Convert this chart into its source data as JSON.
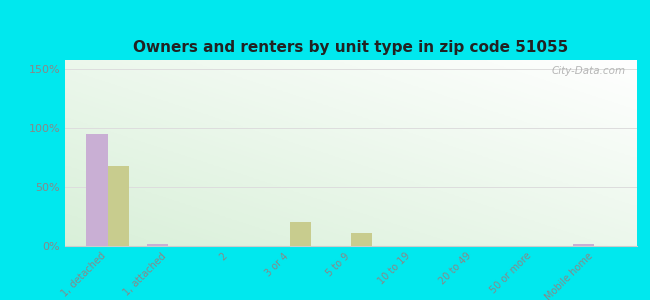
{
  "title": "Owners and renters by unit type in zip code 51055",
  "categories": [
    "1, detached",
    "1, attached",
    "2",
    "3 or 4",
    "5 to 9",
    "10 to 19",
    "20 to 49",
    "50 or more",
    "Mobile home"
  ],
  "owner_values": [
    95,
    2,
    0,
    0,
    0,
    0,
    0,
    0,
    2
  ],
  "renter_values": [
    68,
    0,
    0,
    20,
    11,
    0,
    0,
    0,
    0
  ],
  "owner_color": "#c9afd4",
  "renter_color": "#c8cc8e",
  "background_outer": "#00e8ee",
  "yticks": [
    0,
    50,
    100,
    150
  ],
  "ytick_labels": [
    "0%",
    "50%",
    "100%",
    "150%"
  ],
  "ylim": [
    0,
    158
  ],
  "bar_width": 0.35,
  "watermark": "City-Data.com",
  "grid_color": "#dddddd",
  "tick_color": "#888888",
  "title_color": "#222222"
}
